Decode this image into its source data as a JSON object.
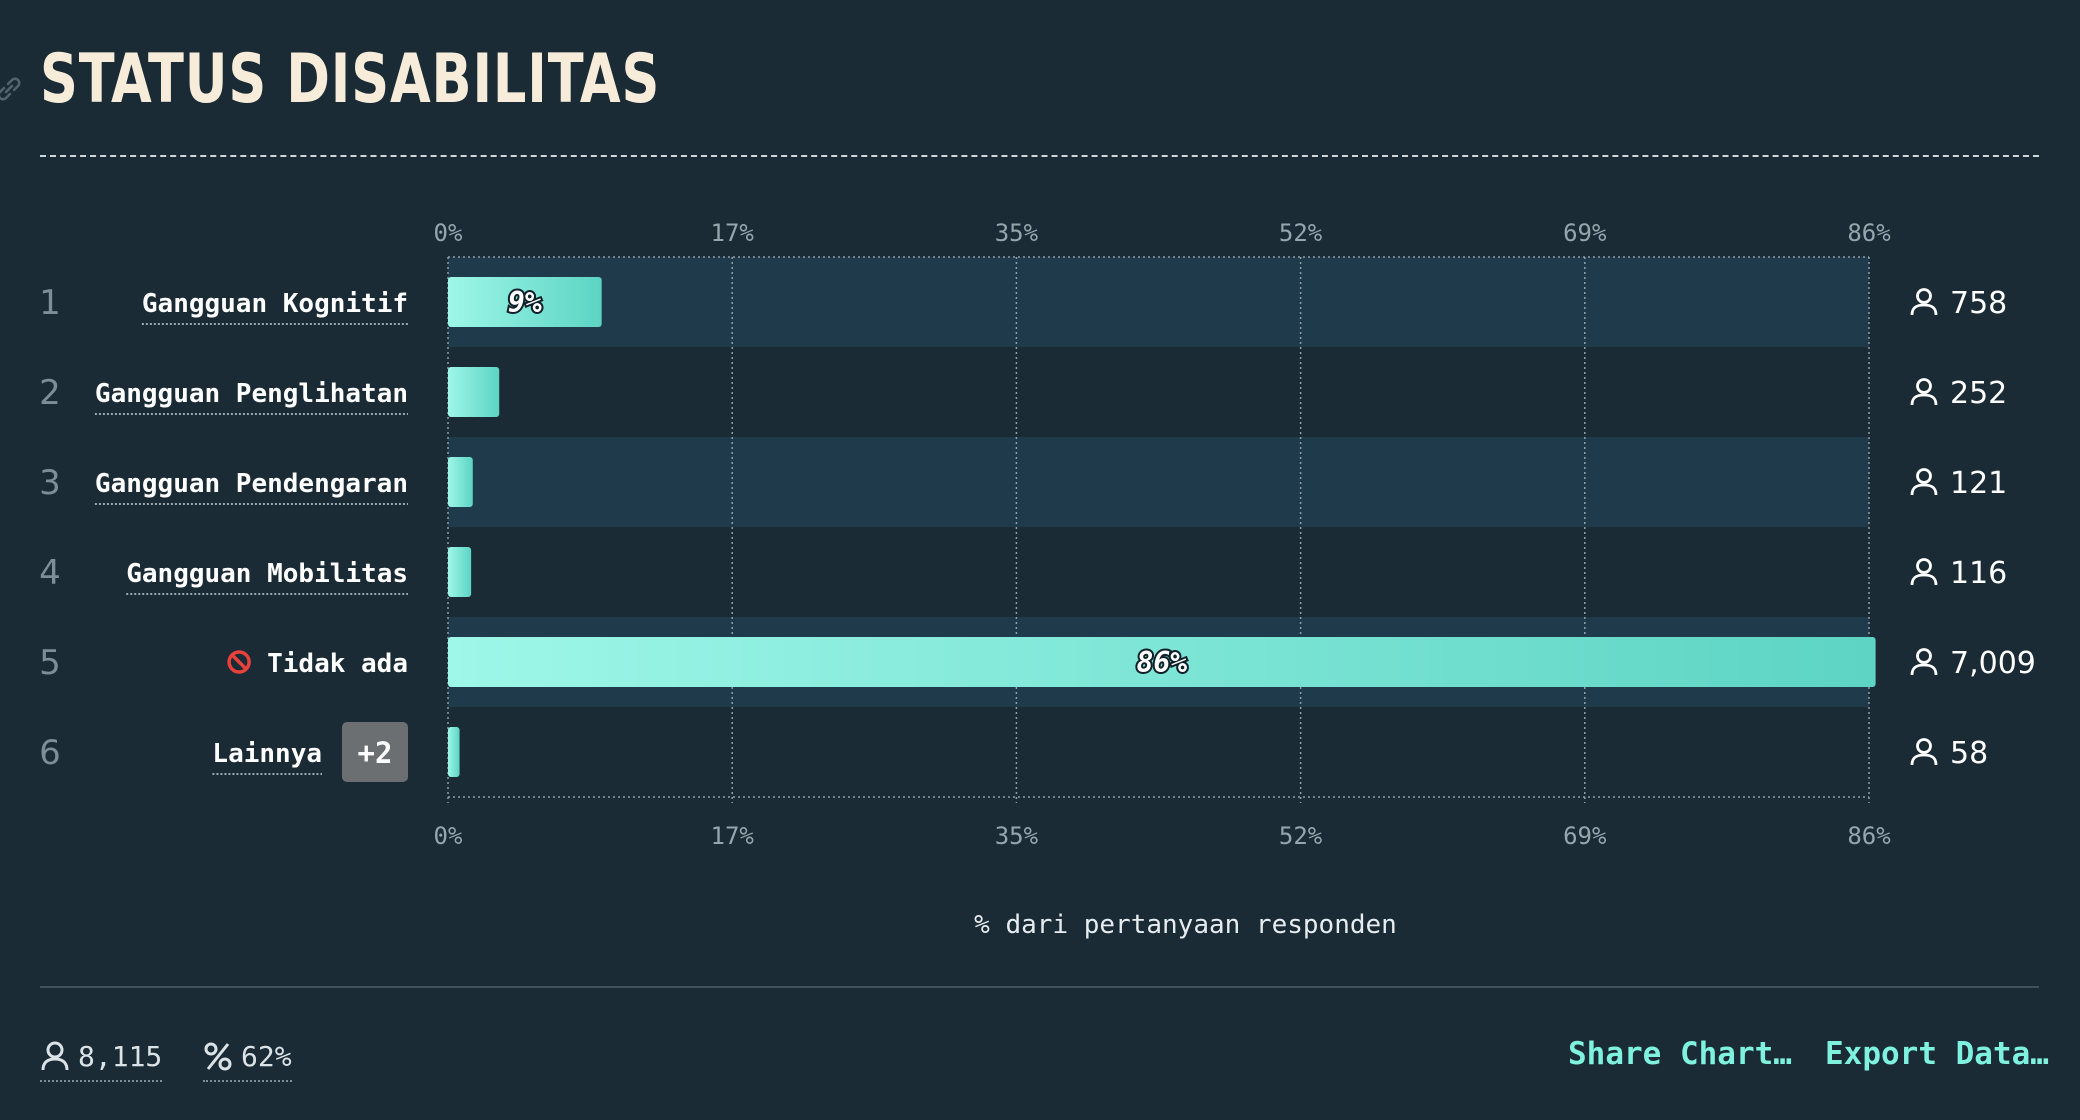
{
  "title": "STATUS DISABILITAS",
  "chart_data": {
    "type": "bar",
    "orientation": "horizontal",
    "title": "STATUS DISABILITAS",
    "xlabel": "% dari pertanyaan responden",
    "xlim": [
      0,
      86
    ],
    "x_ticks": [
      "0%",
      "17%",
      "35%",
      "52%",
      "69%",
      "86%"
    ],
    "categories": [
      "Gangguan Kognitif",
      "Gangguan Penglihatan",
      "Gangguan Pendengaran",
      "Gangguan Mobilitas",
      "Tidak ada",
      "Lainnya"
    ],
    "ranks": [
      "1",
      "2",
      "3",
      "4",
      "5",
      "6"
    ],
    "values": [
      9.3,
      3.1,
      1.5,
      1.4,
      86.4,
      0.7
    ],
    "counts": [
      "758",
      "252",
      "121",
      "116",
      "7,009",
      "58"
    ],
    "bar_labels": [
      "9%",
      "",
      "",
      "",
      "86%",
      ""
    ],
    "category_icons": [
      "",
      "",
      "",
      "",
      "prohibited-icon",
      ""
    ],
    "extra_badge": "+2",
    "grid": true,
    "colors": {
      "bar_start": "#9ef7e8",
      "bar_end": "#5dd4c4",
      "row_band": "#1f3a4a",
      "background": "#1a2b35"
    }
  },
  "footer": {
    "total_respondents": "8,115",
    "response_rate": "62%",
    "share_label": "Share Chart…",
    "export_label": "Export Data…"
  }
}
